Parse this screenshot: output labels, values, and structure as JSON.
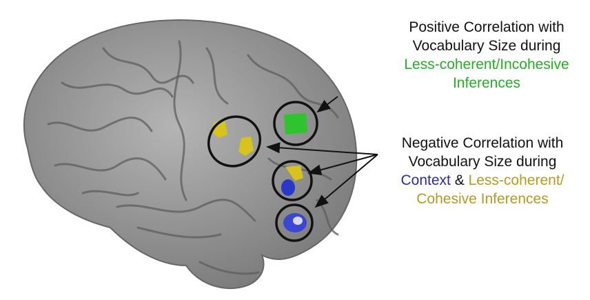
{
  "positive": {
    "line1": "Positive Correlation with",
    "line2": "Vocabulary Size during",
    "line3": "Less-coherent/Incohesive",
    "line4": "Inferences"
  },
  "negative": {
    "line1": "Negative Correlation with",
    "line2": "Vocabulary Size during",
    "context": "Context",
    "amp": "&",
    "lesscoherent": "Less-coherent/",
    "line4": "Cohesive Inferences"
  }
}
